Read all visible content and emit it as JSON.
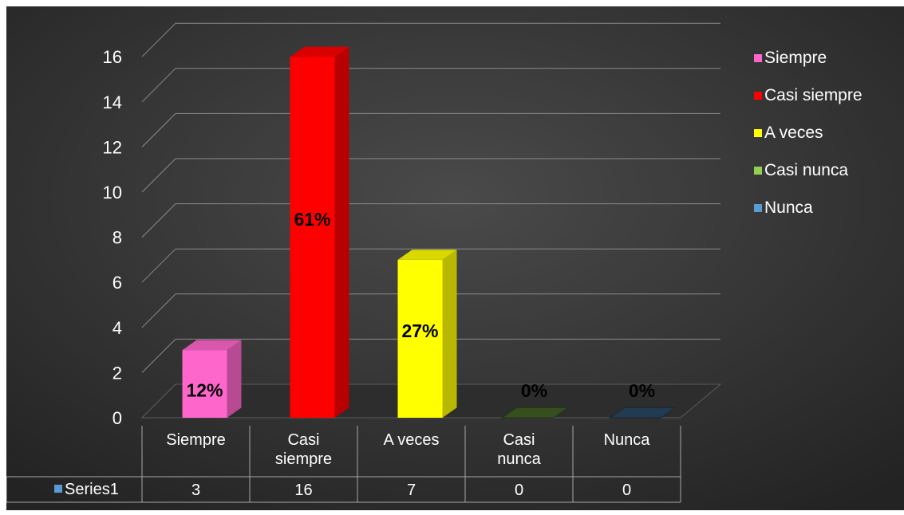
{
  "chart_data": {
    "type": "bar",
    "categories": [
      "Siempre",
      "Casi siempre",
      "A veces",
      "Casi nunca",
      "Nunca"
    ],
    "category_lines": [
      [
        "Siempre"
      ],
      [
        "Casi",
        "siempre"
      ],
      [
        "A veces"
      ],
      [
        "Casi",
        "nunca"
      ],
      [
        "Nunca"
      ]
    ],
    "values": [
      3,
      16,
      7,
      0,
      0
    ],
    "data_labels": [
      "12%",
      "61%",
      "27%",
      "0%",
      "0%"
    ],
    "colors": [
      "#ff66cc",
      "#ff0000",
      "#ffff00",
      "#92d050",
      "#5b9bd5"
    ],
    "series": [
      {
        "name": "Series1",
        "values": [
          3,
          16,
          7,
          0,
          0
        ]
      }
    ],
    "ylim": [
      0,
      16
    ],
    "yticks": [
      0,
      2,
      4,
      6,
      8,
      10,
      12,
      14,
      16
    ],
    "grid": true,
    "legend": {
      "position": "right",
      "entries": [
        "Siempre",
        "Casi siempre",
        "A veces",
        "Casi nunca",
        "Nunca"
      ]
    },
    "data_table": true,
    "background": "#3a3a3a"
  }
}
